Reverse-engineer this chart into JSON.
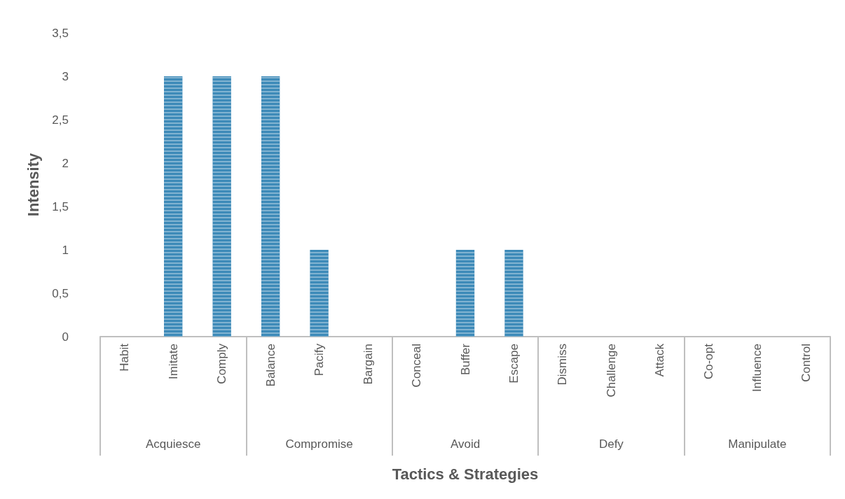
{
  "chart_data": {
    "type": "bar",
    "xlabel": "Tactics & Strategies",
    "ylabel": "Intensity",
    "categories": [
      "Habit",
      "Imitate",
      "Comply",
      "Balance",
      "Pacify",
      "Bargain",
      "Conceal",
      "Buffer",
      "Escape",
      "Dismiss",
      "Challenge",
      "Attack",
      "Co-opt",
      "Influence",
      "Control"
    ],
    "values": [
      0,
      3,
      3,
      3,
      1,
      0,
      0,
      1,
      1,
      0,
      0,
      0,
      0,
      0,
      0
    ],
    "color": "#3d8ab8",
    "annotations": [
      "Acquiesce",
      "Compromise",
      "Avoid",
      "Defy",
      "Manipulate"
    ],
    "ylim": [
      0,
      3.5
    ],
    "yticks": [
      0,
      {
        "value": 0.5,
        "label": "0,5"
      },
      1,
      {
        "value": 1.5,
        "label": "1,5"
      },
      2,
      {
        "value": 2.5,
        "label": "2,5"
      },
      3,
      {
        "value": 3.5,
        "label": "3,5"
      }
    ],
    "grid": false
  }
}
